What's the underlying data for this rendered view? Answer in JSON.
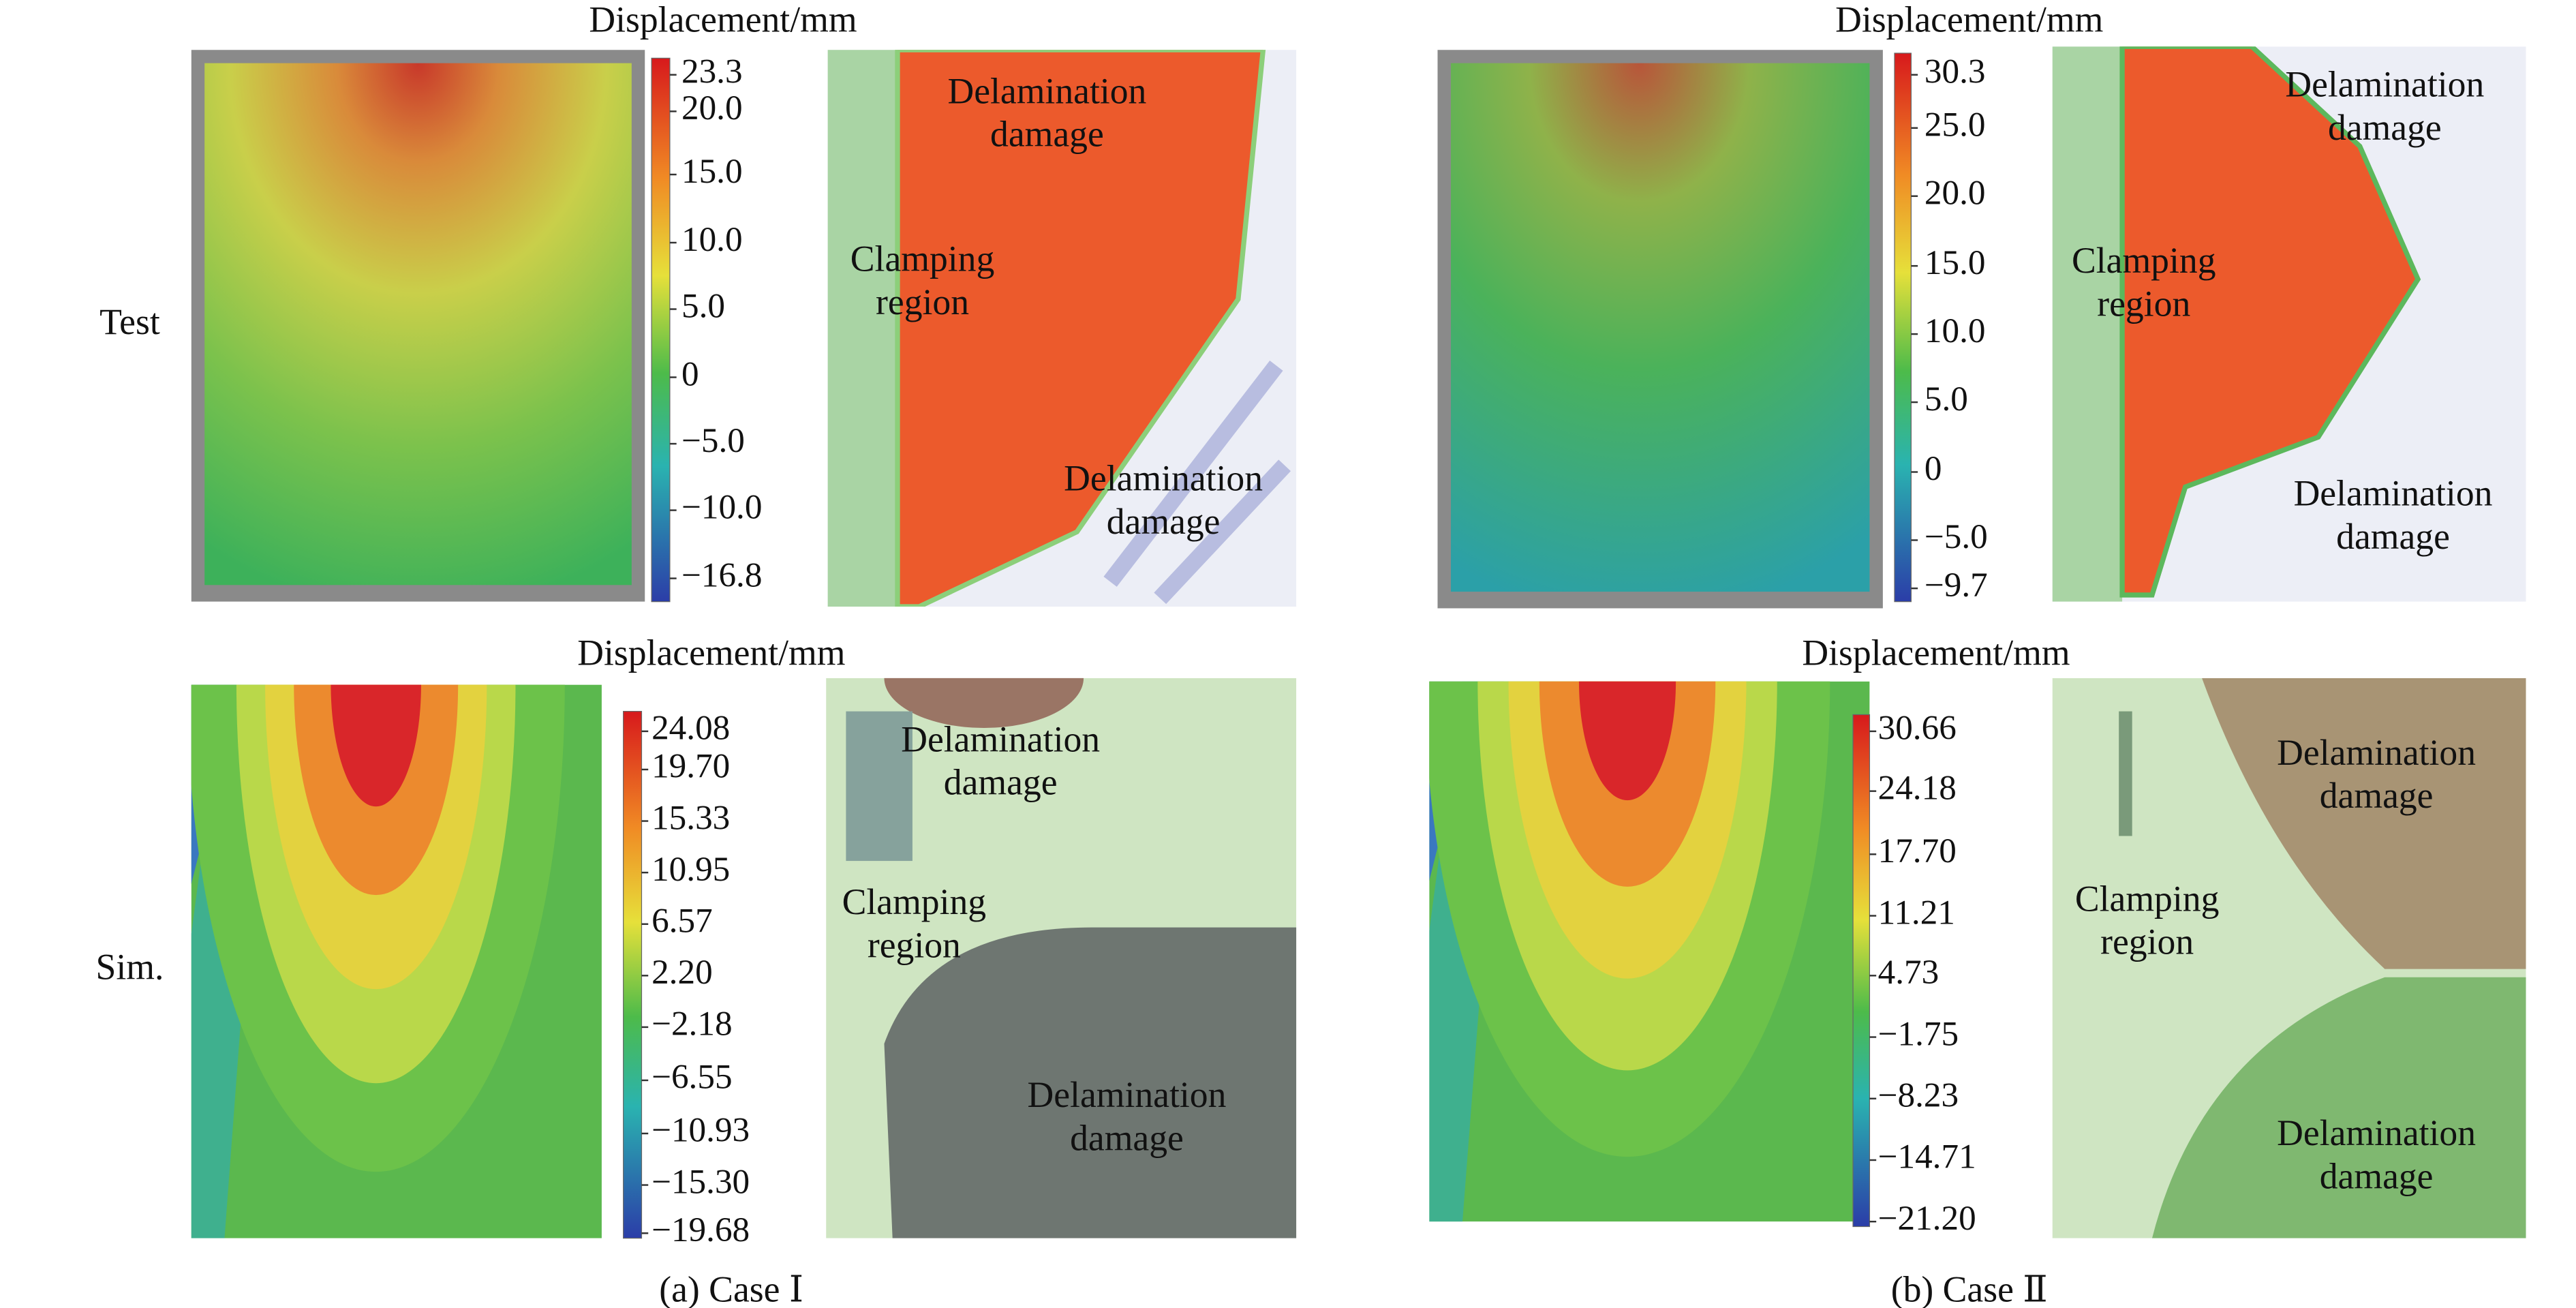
{
  "row_labels": [
    "Test",
    "Sim."
  ],
  "captions": [
    "(a) Case Ⅰ",
    "(b) Case Ⅱ"
  ],
  "panels": [
    {
      "colorbar_title": "Displacement/mm",
      "colorbar_ticks": [
        "23.3",
        "20.0",
        "15.0",
        "10.0",
        "5.0",
        "0",
        "−5.0",
        "−10.0",
        "−16.8"
      ],
      "annotations": [
        {
          "lines": [
            "Delamination",
            "damage"
          ]
        },
        {
          "lines": [
            "Clamping",
            "region"
          ]
        },
        {
          "lines": [
            "Delamination",
            "damage"
          ]
        }
      ]
    },
    {
      "colorbar_title": "Displacement/mm",
      "colorbar_ticks": [
        "24.08",
        "19.70",
        "15.33",
        "10.95",
        "6.57",
        "2.20",
        "−2.18",
        "−6.55",
        "−10.93",
        "−15.30",
        "−19.68"
      ],
      "annotations": [
        {
          "lines": [
            "Delamination",
            "damage"
          ]
        },
        {
          "lines": [
            "Clamping",
            "region"
          ]
        },
        {
          "lines": [
            "Delamination",
            "damage"
          ]
        }
      ]
    },
    {
      "colorbar_title": "Displacement/mm",
      "colorbar_ticks": [
        "30.3",
        "25.0",
        "20.0",
        "15.0",
        "10.0",
        "5.0",
        "0",
        "−5.0",
        "−9.7"
      ],
      "annotations": [
        {
          "lines": [
            "Delamination",
            "damage"
          ]
        },
        {
          "lines": [
            "Clamping",
            "region"
          ]
        },
        {
          "lines": [
            "Delamination",
            "damage"
          ]
        }
      ]
    },
    {
      "colorbar_title": "Displacement/mm",
      "colorbar_ticks": [
        "30.66",
        "24.18",
        "17.70",
        "11.21",
        "4.73",
        "−1.75",
        "−8.23",
        "−14.71",
        "−21.20"
      ],
      "annotations": [
        {
          "lines": [
            "Delamination",
            "damage"
          ]
        },
        {
          "lines": [
            "Clamping",
            "region"
          ]
        },
        {
          "lines": [
            "Delamination",
            "damage"
          ]
        }
      ]
    }
  ]
}
